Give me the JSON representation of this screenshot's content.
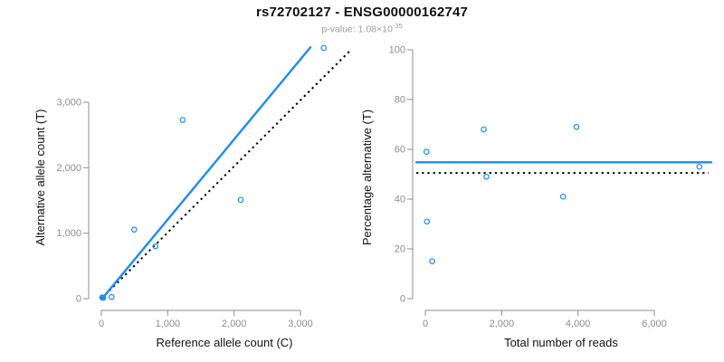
{
  "header": {
    "title": "rs72702127 - ENSG00000162747",
    "subtitle_prefix": "p-value: 1.08×10",
    "subtitle_exponent": "-35"
  },
  "colors": {
    "accent_blue": "#1E8BF0",
    "axis_gray": "#8C8C8C",
    "tick_label_gray": "#8C8C8C",
    "text_black": "#111111",
    "dotted_black": "#000000"
  },
  "chart_data": [
    {
      "id": "allele-counts",
      "type": "scatter",
      "xlabel": "Reference allele count (C)",
      "ylabel": "Alternative allele count (T)",
      "xticks": [
        0,
        1000,
        2000,
        3000
      ],
      "yticks": [
        0,
        1000,
        2000,
        3000
      ],
      "xtick_labels": [
        "0",
        "1,000",
        "2,000",
        "3,000"
      ],
      "ytick_labels": [
        "0",
        "1,000",
        "2,000",
        "3,000"
      ],
      "xlim": [
        0,
        3730
      ],
      "ylim": [
        0,
        3915
      ],
      "grid": false,
      "legend": "none",
      "points": [
        [
          12,
          18
        ],
        [
          28,
          12
        ],
        [
          155,
          25
        ],
        [
          495,
          1055
        ],
        [
          815,
          800
        ],
        [
          1225,
          2730
        ],
        [
          2100,
          1510
        ],
        [
          3350,
          3830
        ]
      ],
      "fit_line": {
        "x1": 20,
        "y1": 10,
        "x2": 3150,
        "y2": 3840,
        "style": "solid-blue"
      },
      "identity_line": {
        "x1": 0,
        "y1": 0,
        "x2": 3750,
        "y2": 3790,
        "style": "dotted-black"
      }
    },
    {
      "id": "percentage-vs-reads",
      "type": "scatter",
      "xlabel": "Total number of reads",
      "ylabel": "Percentage alternative (T)",
      "xticks": [
        0,
        2000,
        4000,
        6000
      ],
      "yticks": [
        0,
        20,
        40,
        60,
        80,
        100
      ],
      "xtick_labels": [
        "0",
        "2,000",
        "4,000",
        "6,000"
      ],
      "ytick_labels": [
        "0",
        "20",
        "40",
        "60",
        "80",
        "100"
      ],
      "xlim": [
        0,
        7490
      ],
      "ylim": [
        0,
        103
      ],
      "grid": false,
      "legend": "none",
      "points": [
        [
          30,
          59
        ],
        [
          40,
          31
        ],
        [
          180,
          15
        ],
        [
          1530,
          68
        ],
        [
          1600,
          49
        ],
        [
          3960,
          69
        ],
        [
          3610,
          41
        ],
        [
          7180,
          53
        ]
      ],
      "mean_line": {
        "y": 54.8,
        "style": "solid-blue"
      },
      "reference_line": {
        "y": 50.5,
        "style": "dotted-black"
      }
    }
  ]
}
